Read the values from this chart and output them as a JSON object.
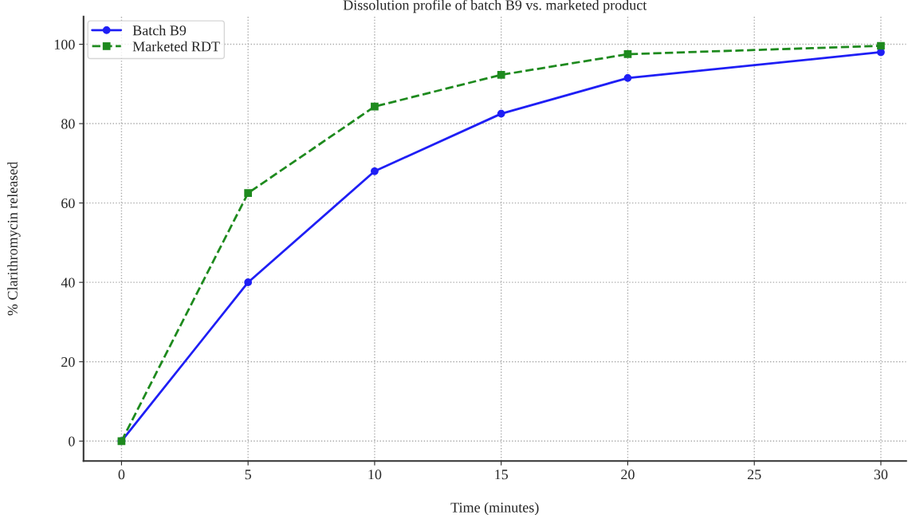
{
  "chart_data": {
    "type": "line",
    "title": "Dissolution profile of batch B9 vs. marketed product",
    "xlabel": "Time (minutes)",
    "ylabel": "% Clarithromycin released",
    "x": [
      0,
      5,
      10,
      15,
      20,
      30
    ],
    "series": [
      {
        "name": "Batch B9",
        "color": "#1f1ff5",
        "values": [
          0,
          40,
          68,
          82.5,
          91.5,
          98
        ],
        "marker": "circle",
        "line_style": "solid"
      },
      {
        "name": "Marketed RDT",
        "color": "#1e8a1e",
        "values": [
          0,
          62.5,
          84.3,
          92.3,
          97.5,
          99.6
        ],
        "marker": "square",
        "line_style": "dashed"
      }
    ],
    "xlim": [
      -1.5,
      31
    ],
    "ylim": [
      -5,
      107
    ],
    "xticks": [
      0,
      5,
      10,
      15,
      20,
      25,
      30
    ],
    "yticks": [
      0,
      20,
      40,
      60,
      80,
      100
    ],
    "grid": true,
    "legend": "top left"
  }
}
